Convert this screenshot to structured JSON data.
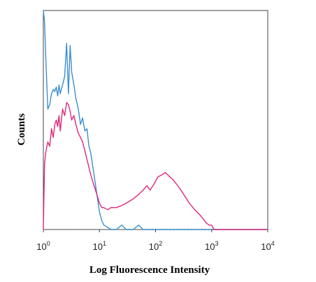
{
  "chart_data": {
    "type": "line",
    "title": "",
    "xlabel": "Log Fluorescence Intensity",
    "ylabel": "Counts",
    "x_scale": "log",
    "xlim": [
      1,
      10000
    ],
    "ylim": [
      0,
      100
    ],
    "x_ticks": [
      {
        "base": "10",
        "exp": "0",
        "value": 1
      },
      {
        "base": "10",
        "exp": "1",
        "value": 10
      },
      {
        "base": "10",
        "exp": "2",
        "value": 100
      },
      {
        "base": "10",
        "exp": "3",
        "value": 1000
      },
      {
        "base": "10",
        "exp": "4",
        "value": 10000
      }
    ],
    "grid": false,
    "legend": "none",
    "series": [
      {
        "color": "#3a8fd0",
        "x": [
          1,
          1.05,
          1.1,
          1.2,
          1.3,
          1.4,
          1.5,
          1.6,
          1.7,
          1.8,
          1.9,
          2.0,
          2.2,
          2.4,
          2.6,
          2.8,
          3.0,
          3.2,
          3.5,
          3.8,
          4.2,
          4.6,
          5.0,
          5.5,
          6.0,
          6.5,
          7.0,
          8.0,
          9.0,
          10,
          11,
          12,
          14,
          16,
          20,
          25,
          30,
          40,
          50,
          60,
          80,
          100,
          1000,
          10000
        ],
        "y": [
          100,
          95,
          80,
          55,
          57,
          62,
          64,
          63,
          65,
          61,
          66,
          62,
          66,
          70,
          85,
          62,
          84,
          72,
          66,
          60,
          55,
          48,
          51,
          45,
          46,
          38,
          35,
          25,
          16,
          8,
          4,
          2,
          1,
          0,
          0,
          2,
          0,
          0,
          2,
          0,
          0,
          0,
          0,
          0
        ]
      },
      {
        "color": "#e0287d",
        "x": [
          1,
          1.05,
          1.1,
          1.2,
          1.3,
          1.4,
          1.5,
          1.6,
          1.7,
          1.8,
          1.9,
          2.0,
          2.2,
          2.4,
          2.6,
          2.8,
          3.0,
          3.2,
          3.5,
          3.8,
          4.2,
          4.6,
          5.0,
          5.5,
          6.0,
          7.0,
          8.0,
          9.0,
          10,
          11,
          12,
          14,
          16,
          20,
          25,
          30,
          40,
          50,
          60,
          70,
          80,
          90,
          100,
          110,
          130,
          150,
          180,
          200,
          250,
          300,
          400,
          500,
          600,
          700,
          800,
          900,
          1000,
          1100,
          10000
        ],
        "y": [
          0,
          30,
          35,
          40,
          38,
          46,
          42,
          48,
          50,
          47,
          52,
          45,
          55,
          52,
          58,
          57,
          54,
          50,
          52,
          48,
          44,
          42,
          40,
          36,
          32,
          25,
          20,
          16,
          12,
          10,
          10,
          9,
          10,
          10,
          11,
          12,
          14,
          16,
          18,
          20,
          18,
          20,
          22,
          24,
          25,
          26,
          24,
          23,
          20,
          17,
          12,
          9,
          7,
          5,
          3,
          2,
          2,
          0,
          0
        ]
      }
    ]
  }
}
